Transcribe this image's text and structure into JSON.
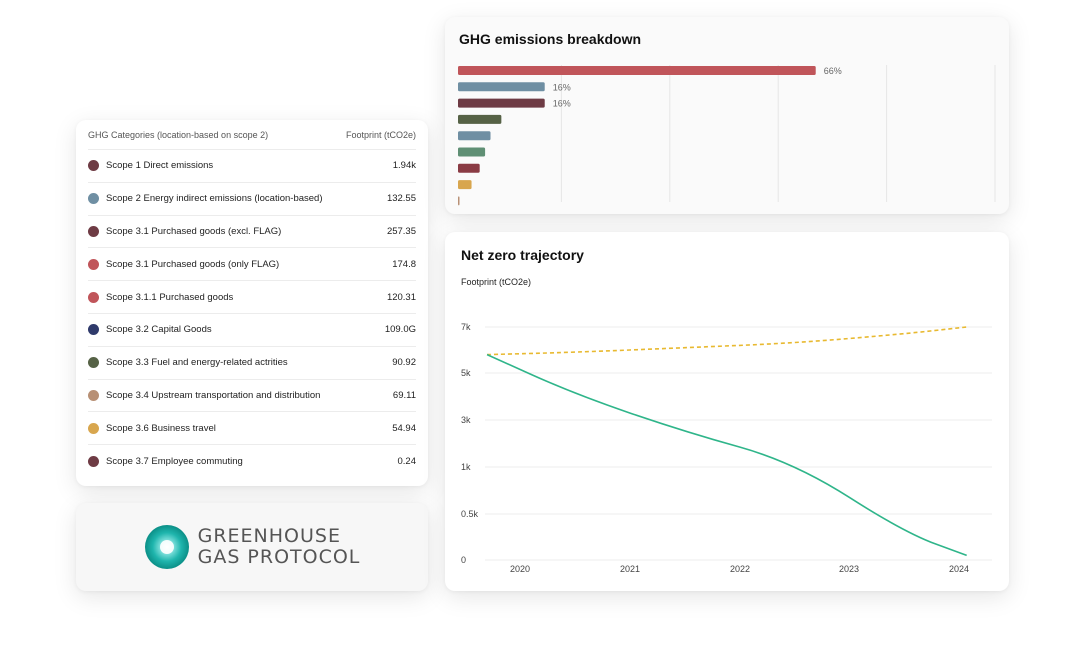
{
  "table": {
    "header_category": "GHG Categories (location-based on scope 2)",
    "header_footprint": "Footprint (tCO2e)",
    "rows": [
      {
        "label": "Scope 1 Direct emissions",
        "value": "1.94k",
        "color": "#6e3b44"
      },
      {
        "label": "Scope 2 Energy indirect emissions (location-based)",
        "value": "132.55",
        "color": "#6f8fa3"
      },
      {
        "label": "Scope 3.1 Purchased goods (excl. FLAG)",
        "value": "257.35",
        "color": "#6e3b44"
      },
      {
        "label": "Scope 3.1 Purchased goods (only FLAG)",
        "value": "174.8",
        "color": "#c0555a"
      },
      {
        "label": "Scope 3.1.1 Purchased goods",
        "value": "120.31",
        "color": "#c0555a"
      },
      {
        "label": "Scope 3.2 Capital Goods",
        "value": "109.0G",
        "color": "#2f3a6b"
      },
      {
        "label": "Scope 3.3 Fuel and energy-related actrities",
        "value": "90.92",
        "color": "#566246"
      },
      {
        "label": "Scope 3.4 Upstream transportation and distribution",
        "value": "69.11",
        "color": "#b89075"
      },
      {
        "label": "Scope 3.6 Business travel",
        "value": "54.94",
        "color": "#d8a64e"
      },
      {
        "label": "Scope 3.7 Employee commuting",
        "value": "0.24",
        "color": "#6e3b44"
      }
    ]
  },
  "logo": {
    "line1": "GREENHOUSE",
    "line2": "GAS PROTOCOL",
    "icon": "greenhouse-gas-protocol-logo-icon"
  },
  "bar_chart": {
    "title": "GHG emissions breakdown"
  },
  "line_chart": {
    "title": "Net zero trajectory",
    "ylabel": "Footprint (tCO2e)"
  },
  "chart_data": [
    {
      "type": "bar",
      "orientation": "horizontal",
      "title": "GHG emissions breakdown",
      "values": [
        66,
        16,
        16,
        8,
        6,
        5,
        4,
        2.5,
        0.2
      ],
      "data_labels": [
        "66%",
        "16%",
        "16%",
        "",
        "",
        "",
        "",
        "",
        ""
      ],
      "colors": [
        "#c0555a",
        "#6f8fa3",
        "#6e3b44",
        "#566246",
        "#6f8fa3",
        "#5f8f74",
        "#8a3b44",
        "#d8a64e",
        "#b89075"
      ],
      "xlim": [
        0,
        100
      ],
      "grid": true
    },
    {
      "type": "line",
      "title": "Net zero trajectory",
      "ylabel": "Footprint (tCO2e)",
      "x_ticks": [
        "2020",
        "2021",
        "2022",
        "2023",
        "2024"
      ],
      "y_ticks": [
        "0",
        "0.5k",
        "1k",
        "3k",
        "5k",
        "7k"
      ],
      "series": [
        {
          "color": "#e8b930",
          "style": "dashed",
          "x": [
            2019.7,
            2020.5,
            2021.5,
            2022.5,
            2023.5,
            2024.07
          ],
          "y": [
            5.8,
            5.9,
            6.1,
            6.3,
            6.7,
            7.0
          ]
        },
        {
          "color": "#2fb58a",
          "style": "solid",
          "x": [
            2019.7,
            2020.5,
            2021.5,
            2022.5,
            2023.5,
            2024.07
          ],
          "y": [
            5.8,
            4.1,
            2.5,
            1.2,
            0.3,
            0.05
          ]
        }
      ],
      "grid": true
    }
  ]
}
